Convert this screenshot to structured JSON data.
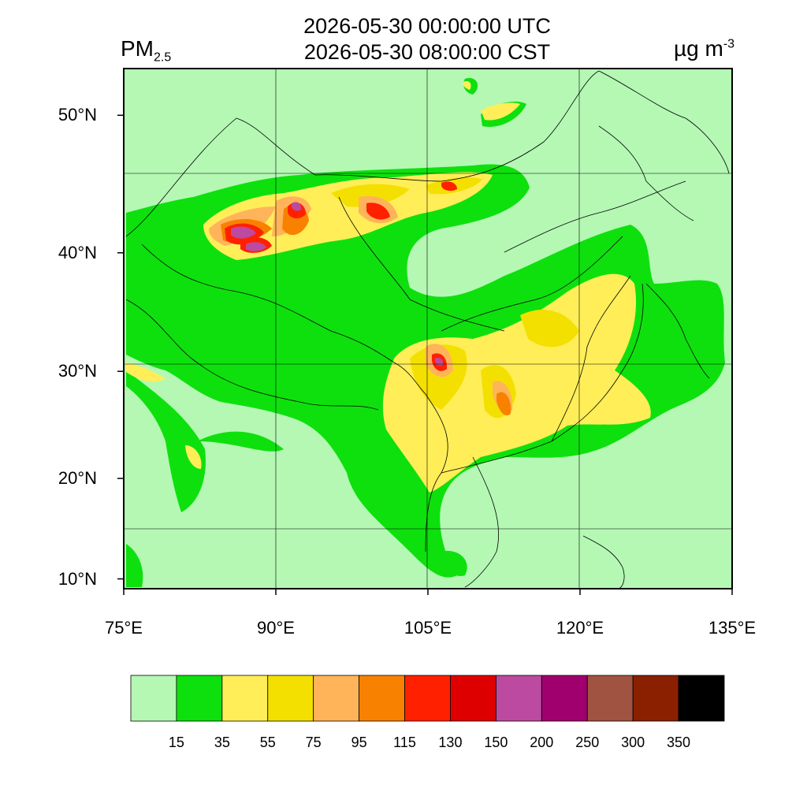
{
  "title": {
    "utc": "2026-05-30 00:00:00 UTC",
    "cst": "2026-05-30 08:00:00 CST"
  },
  "variable": {
    "main": "PM",
    "sub": "2.5"
  },
  "units": {
    "main": "µg m",
    "sup": "-3"
  },
  "map": {
    "extent": {
      "lon": [
        75,
        135
      ],
      "lat": [
        9,
        53
      ]
    },
    "lat_ticks": [
      {
        "value": 50,
        "label": "50°N"
      },
      {
        "value": 40,
        "label": "40°N"
      },
      {
        "value": 30,
        "label": "30°N"
      },
      {
        "value": 20,
        "label": "20°N"
      },
      {
        "value": 10,
        "label": "10°N"
      }
    ],
    "lon_ticks": [
      {
        "value": 75,
        "label": "75°E"
      },
      {
        "value": 90,
        "label": "90°E"
      },
      {
        "value": 105,
        "label": "105°E"
      },
      {
        "value": 120,
        "label": "120°E"
      },
      {
        "value": 135,
        "label": "135°E"
      }
    ],
    "background_color": "#b4f8b4"
  },
  "colorbar": {
    "colors": [
      "#b4f8b4",
      "#0ee00e",
      "#ffee58",
      "#f4e000",
      "#ffb45a",
      "#f88200",
      "#ff2000",
      "#de0000",
      "#bc4aa0",
      "#a0006e",
      "#a05340",
      "#8a2000",
      "#000000"
    ],
    "labels": [
      "15",
      "35",
      "55",
      "75",
      "95",
      "115",
      "130",
      "150",
      "200",
      "250",
      "300",
      "350"
    ]
  }
}
